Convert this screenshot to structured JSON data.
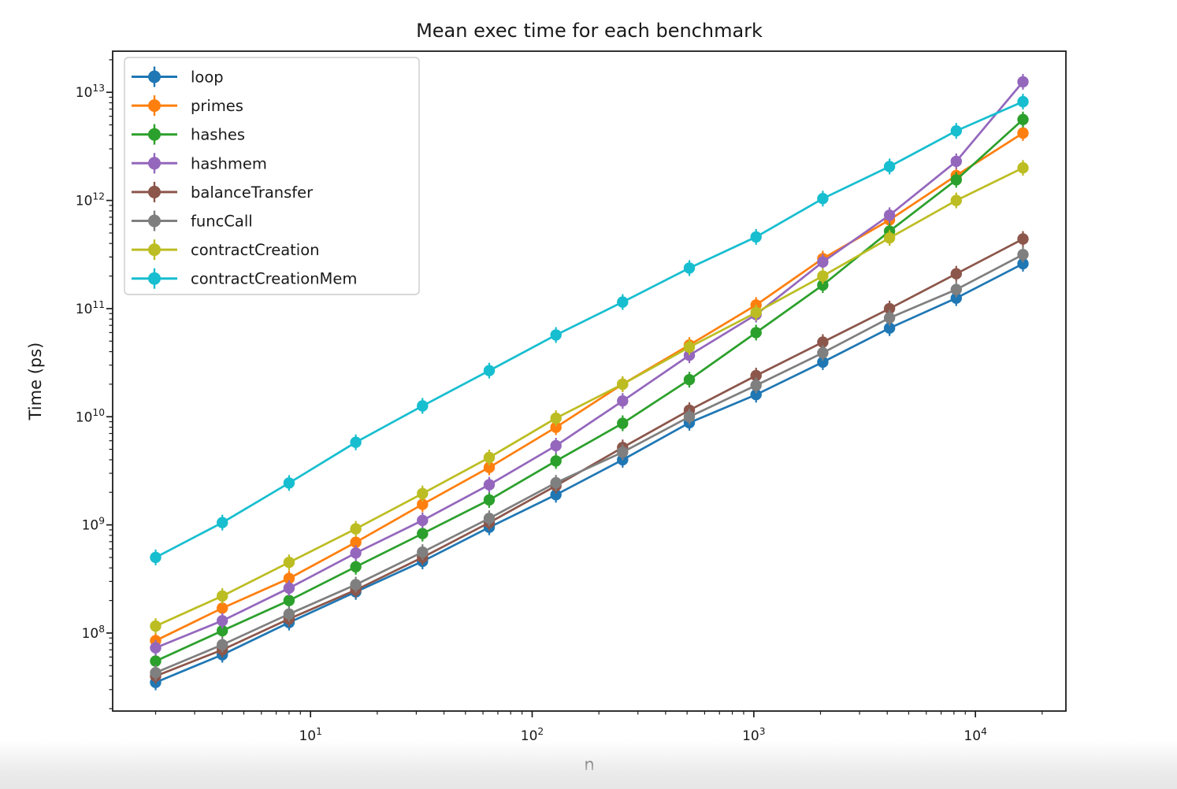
{
  "chart_data": {
    "type": "line",
    "title": "Mean exec time for each benchmark",
    "xlabel": "n",
    "ylabel": "Time (ps)",
    "xscale": "log",
    "yscale": "log",
    "grid": false,
    "legend_position": "upper left",
    "marker": "circle",
    "error_bars": true,
    "xlim": [
      1.28,
      25600
    ],
    "ylim": [
      19000000.0,
      24000000000000.0
    ],
    "x_major_ticks": [
      10,
      100,
      1000,
      10000
    ],
    "y_major_ticks": [
      100000000.0,
      1000000000.0,
      10000000000.0,
      100000000000.0,
      1000000000000.0,
      10000000000000.0
    ],
    "x": [
      2,
      4,
      8,
      16,
      32,
      64,
      128,
      256,
      512,
      1024,
      2048,
      4096,
      8192,
      16384
    ],
    "series": [
      {
        "name": "loop",
        "color": "#1f77b4",
        "values": [
          35000000.0,
          63000000.0,
          125000000.0,
          240000000.0,
          460000000.0,
          950000000.0,
          1900000000.0,
          4000000000.0,
          8800000000.0,
          16000000000.0,
          32000000000.0,
          66000000000.0,
          125000000000.0,
          260000000000.0
        ]
      },
      {
        "name": "primes",
        "color": "#ff7f0e",
        "values": [
          85000000.0,
          170000000.0,
          320000000.0,
          690000000.0,
          1550000000.0,
          3400000000.0,
          8000000000.0,
          20000000000.0,
          46000000000.0,
          108000000000.0,
          290000000000.0,
          660000000000.0,
          1700000000000.0,
          4200000000000.0
        ]
      },
      {
        "name": "hashes",
        "color": "#2ca02c",
        "values": [
          55000000.0,
          105000000.0,
          200000000.0,
          410000000.0,
          830000000.0,
          1700000000.0,
          3900000000.0,
          8700000000.0,
          22000000000.0,
          60000000000.0,
          165000000000.0,
          520000000000.0,
          1550000000000.0,
          5600000000000.0
        ]
      },
      {
        "name": "hashmem",
        "color": "#9467bd",
        "values": [
          73000000.0,
          130000000.0,
          260000000.0,
          550000000.0,
          1100000000.0,
          2350000000.0,
          5400000000.0,
          14000000000.0,
          37000000000.0,
          88000000000.0,
          270000000000.0,
          730000000000.0,
          2300000000000.0,
          12500000000000.0
        ]
      },
      {
        "name": "balanceTransfer",
        "color": "#8c564b",
        "values": [
          40000000.0,
          70000000.0,
          135000000.0,
          250000000.0,
          500000000.0,
          1050000000.0,
          2300000000.0,
          5200000000.0,
          11500000000.0,
          24000000000.0,
          49000000000.0,
          100000000000.0,
          210000000000.0,
          440000000000.0
        ]
      },
      {
        "name": "funcCall",
        "color": "#7f7f7f",
        "values": [
          43000000.0,
          78000000.0,
          150000000.0,
          280000000.0,
          560000000.0,
          1150000000.0,
          2450000000.0,
          4700000000.0,
          10000000000.0,
          19500000000.0,
          39000000000.0,
          82000000000.0,
          150000000000.0,
          316000000000.0
        ]
      },
      {
        "name": "contractCreation",
        "color": "#bcbd22",
        "values": [
          116000000.0,
          220000000.0,
          450000000.0,
          920000000.0,
          1950000000.0,
          4200000000.0,
          9700000000.0,
          20000000000.0,
          44000000000.0,
          92000000000.0,
          200000000000.0,
          450000000000.0,
          1000000000000.0,
          2000000000000.0
        ]
      },
      {
        "name": "contractCreationMem",
        "color": "#17becf",
        "values": [
          500000000.0,
          1050000000.0,
          2440000000.0,
          5800000000.0,
          12600000000.0,
          26700000000.0,
          57000000000.0,
          115000000000.0,
          237000000000.0,
          460000000000.0,
          1040000000000.0,
          2060000000000.0,
          4400000000000.0,
          8200000000000.0
        ]
      }
    ]
  }
}
